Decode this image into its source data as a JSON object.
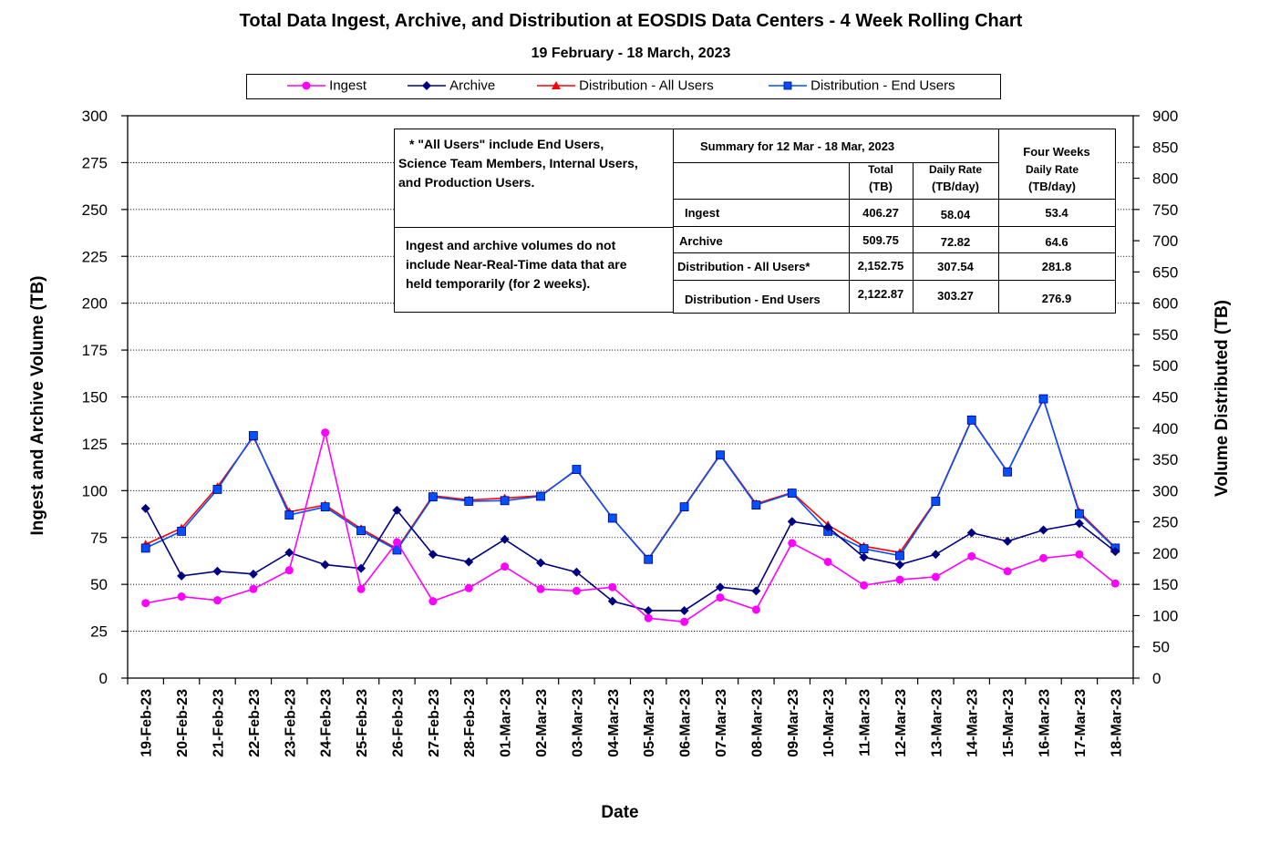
{
  "title": "Total Data Ingest, Archive, and  Distribution at EOSDIS Data Centers - 4 Week Rolling Chart",
  "subtitle": "19  February   -  18  March,  2023",
  "legend": {
    "ingest": "Ingest",
    "archive": "Archive",
    "dist_all": "Distribution - All Users",
    "dist_end": "Distribution - End Users"
  },
  "colors": {
    "ingest": "#ff00ff",
    "archive": "#000080",
    "dist_all": "#ff0000",
    "dist_end": "#0050ff"
  },
  "notes": {
    "all_users_1": "* \"All Users\" include End Users,",
    "all_users_2": "Science Team Members,  Internal Users,",
    "all_users_3": "and Production Users.",
    "nrt_1": "Ingest and archive volumes do not",
    "nrt_2": "include Near-Real-Time data that are",
    "nrt_3": "held temporarily (for 2 weeks)."
  },
  "summary": {
    "heading": "Summary  for  12  Mar   -  18  Mar,  2023",
    "four_weeks": "Four Weeks",
    "col_total_1": "Total",
    "col_total_2": "(TB)",
    "col_daily_1": "Daily Rate",
    "col_daily_2": "(TB/day)",
    "col_four_1": "Daily Rate",
    "col_four_2": "(TB/day)",
    "rows": [
      {
        "label": "Ingest",
        "total": "406.27",
        "daily": "58.04",
        "four": "53.4"
      },
      {
        "label": "Archive",
        "total": "509.75",
        "daily": "72.82",
        "four": "64.6"
      },
      {
        "label": "Distribution - All Users*",
        "total": "2,152.75",
        "daily": "307.54",
        "four": "281.8"
      },
      {
        "label": "Distribution - End Users",
        "total": "2,122.87",
        "daily": "303.27",
        "four": "276.9"
      }
    ]
  },
  "chart_data": {
    "type": "line",
    "title": "Total Data Ingest, Archive, and  Distribution at EOSDIS Data Centers - 4 Week Rolling Chart",
    "subtitle": "19  February   -  18  March,  2023",
    "xlabel": "Date",
    "ylabel_left": "Ingest and Archive Volume (TB)",
    "ylabel_right": "Volume Distributed (TB)",
    "ylim_left": [
      0,
      300
    ],
    "ylim_right": [
      0,
      900
    ],
    "yticks_left": [
      "0",
      "25",
      "50",
      "75",
      "100",
      "125",
      "150",
      "175",
      "200",
      "225",
      "250",
      "275",
      "300"
    ],
    "yticks_right": [
      "0",
      "50",
      "100",
      "150",
      "200",
      "250",
      "300",
      "350",
      "400",
      "450",
      "500",
      "550",
      "600",
      "650",
      "700",
      "750",
      "800",
      "850",
      "900"
    ],
    "grid": true,
    "legend_position": "top",
    "categories": [
      "19-Feb-23",
      "20-Feb-23",
      "21-Feb-23",
      "22-Feb-23",
      "23-Feb-23",
      "24-Feb-23",
      "25-Feb-23",
      "26-Feb-23",
      "27-Feb-23",
      "28-Feb-23",
      "01-Mar-23",
      "02-Mar-23",
      "03-Mar-23",
      "04-Mar-23",
      "05-Mar-23",
      "06-Mar-23",
      "07-Mar-23",
      "08-Mar-23",
      "09-Mar-23",
      "10-Mar-23",
      "11-Mar-23",
      "12-Mar-23",
      "13-Mar-23",
      "14-Mar-23",
      "15-Mar-23",
      "16-Mar-23",
      "17-Mar-23",
      "18-Mar-23"
    ],
    "series": [
      {
        "name": "Ingest",
        "key": "ingest",
        "axis": "left",
        "marker": "circle",
        "values": [
          40,
          43.5,
          41.5,
          47.5,
          57.5,
          131,
          47.5,
          72.5,
          41,
          48,
          59.5,
          47.5,
          46.5,
          48.5,
          32,
          30,
          43,
          36.5,
          72,
          62,
          49.5,
          52.5,
          54,
          65,
          57,
          64,
          66,
          50.5
        ]
      },
      {
        "name": "Archive",
        "key": "archive",
        "axis": "left",
        "marker": "diamond",
        "values": [
          90.5,
          54.5,
          57,
          55.5,
          67,
          60.5,
          58.5,
          89.5,
          66,
          62,
          74,
          61.5,
          56.5,
          41,
          36,
          36,
          48.5,
          46.5,
          83.5,
          80.5,
          64.5,
          60.5,
          66,
          77.5,
          73,
          79,
          82.5,
          67.5
        ]
      },
      {
        "name": "Distribution - All Users",
        "key": "dist_all",
        "axis": "right",
        "marker": "triangle",
        "values": [
          214,
          240,
          306,
          386,
          266,
          277,
          239,
          207,
          292,
          285,
          288,
          292,
          333,
          256,
          191,
          275,
          358,
          279,
          297,
          245,
          211,
          201,
          284,
          414,
          330,
          446,
          266,
          209
        ]
      },
      {
        "name": "Distribution - End Users",
        "key": "dist_end",
        "axis": "right",
        "marker": "square",
        "values": [
          208,
          235,
          302,
          388,
          261,
          274,
          236,
          205,
          290,
          283,
          284,
          291,
          334,
          256,
          190,
          274,
          357,
          277,
          296,
          235,
          207,
          196,
          283,
          413,
          330,
          447,
          263,
          208
        ]
      }
    ]
  }
}
